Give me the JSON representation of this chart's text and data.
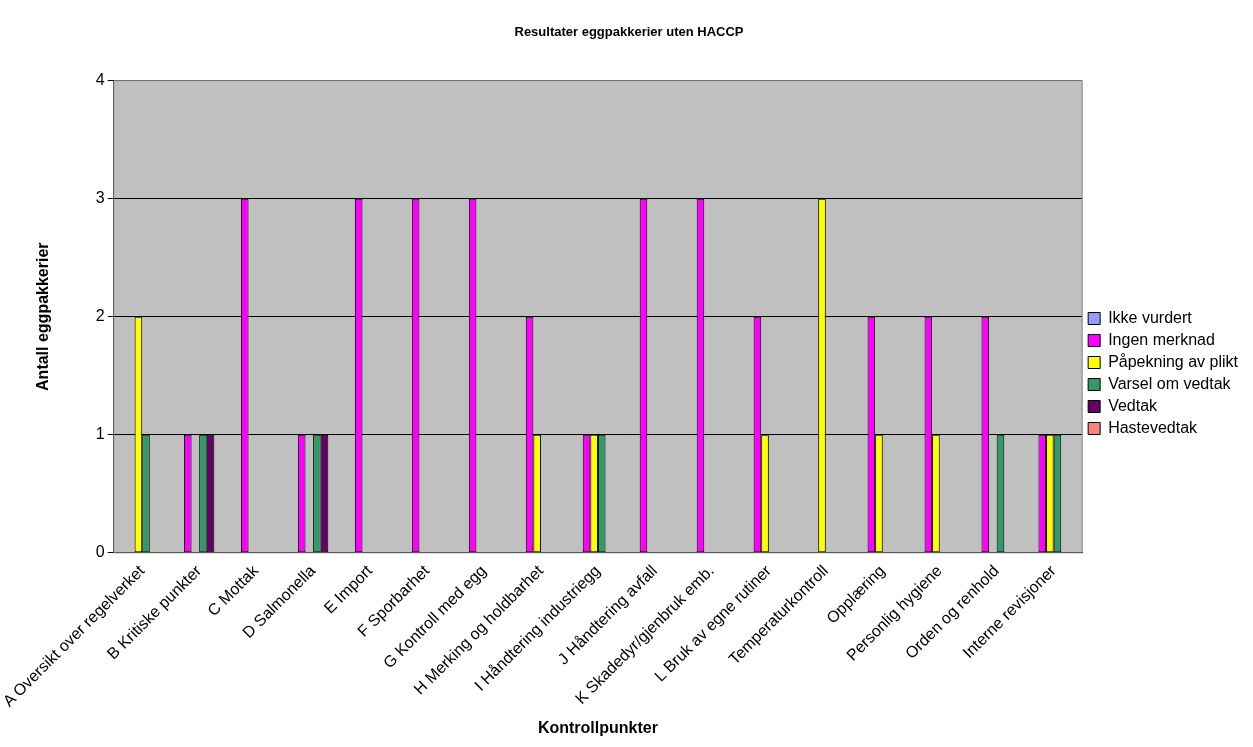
{
  "chart_data": {
    "type": "bar",
    "title": "Resultater eggpakkerier uten HACCP",
    "xlabel": "Kontrollpunkter",
    "ylabel": "Antall eggpakkerier",
    "categories": [
      "A Oversikt over regelverket",
      "B Kritiske punkter",
      "C Mottak",
      "D Salmonella",
      "E Import",
      "F Sporbarhet",
      "G Kontroll med egg",
      "H Merking og holdbarhet",
      "I Håndtering industriegg",
      "J Håndtering avfall",
      "K Skadedyr/gjenbruk emb.",
      "L Bruk av egne rutiner",
      "Temperaturkontroll",
      "Opplæring",
      "Personlig hygiene",
      "Orden og renhold",
      "Interne revisjoner"
    ],
    "series": [
      {
        "name": "Ikke vurdert",
        "color": "#9999ff",
        "values": [
          0,
          0,
          0,
          0,
          0,
          0,
          0,
          0,
          0,
          0,
          0,
          0,
          0,
          0,
          0,
          0,
          0
        ]
      },
      {
        "name": "Ingen merknad",
        "color": "#ff00ff",
        "values": [
          0,
          1,
          3,
          1,
          3,
          3,
          3,
          2,
          1,
          3,
          3,
          2,
          0,
          2,
          2,
          2,
          1
        ]
      },
      {
        "name": "Påpekning av plikt",
        "color": "#ffff00",
        "values": [
          2,
          0,
          0,
          0,
          0,
          0,
          0,
          1,
          1,
          0,
          0,
          1,
          3,
          1,
          1,
          0,
          1
        ]
      },
      {
        "name": "Varsel om vedtak",
        "color": "#339966",
        "values": [
          1,
          1,
          0,
          1,
          0,
          0,
          0,
          0,
          1,
          0,
          0,
          0,
          0,
          0,
          0,
          1,
          1
        ]
      },
      {
        "name": "Vedtak",
        "color": "#660066",
        "values": [
          0,
          1,
          0,
          1,
          0,
          0,
          0,
          0,
          0,
          0,
          0,
          0,
          0,
          0,
          0,
          0,
          0
        ]
      },
      {
        "name": "Hastevedtak",
        "color": "#ff8080",
        "values": [
          0,
          0,
          0,
          0,
          0,
          0,
          0,
          0,
          0,
          0,
          0,
          0,
          0,
          0,
          0,
          0,
          0
        ]
      }
    ],
    "ylim": [
      0,
      4
    ],
    "yticks": [
      0,
      1,
      2,
      3,
      4
    ],
    "grid": "y",
    "legend": "right"
  }
}
